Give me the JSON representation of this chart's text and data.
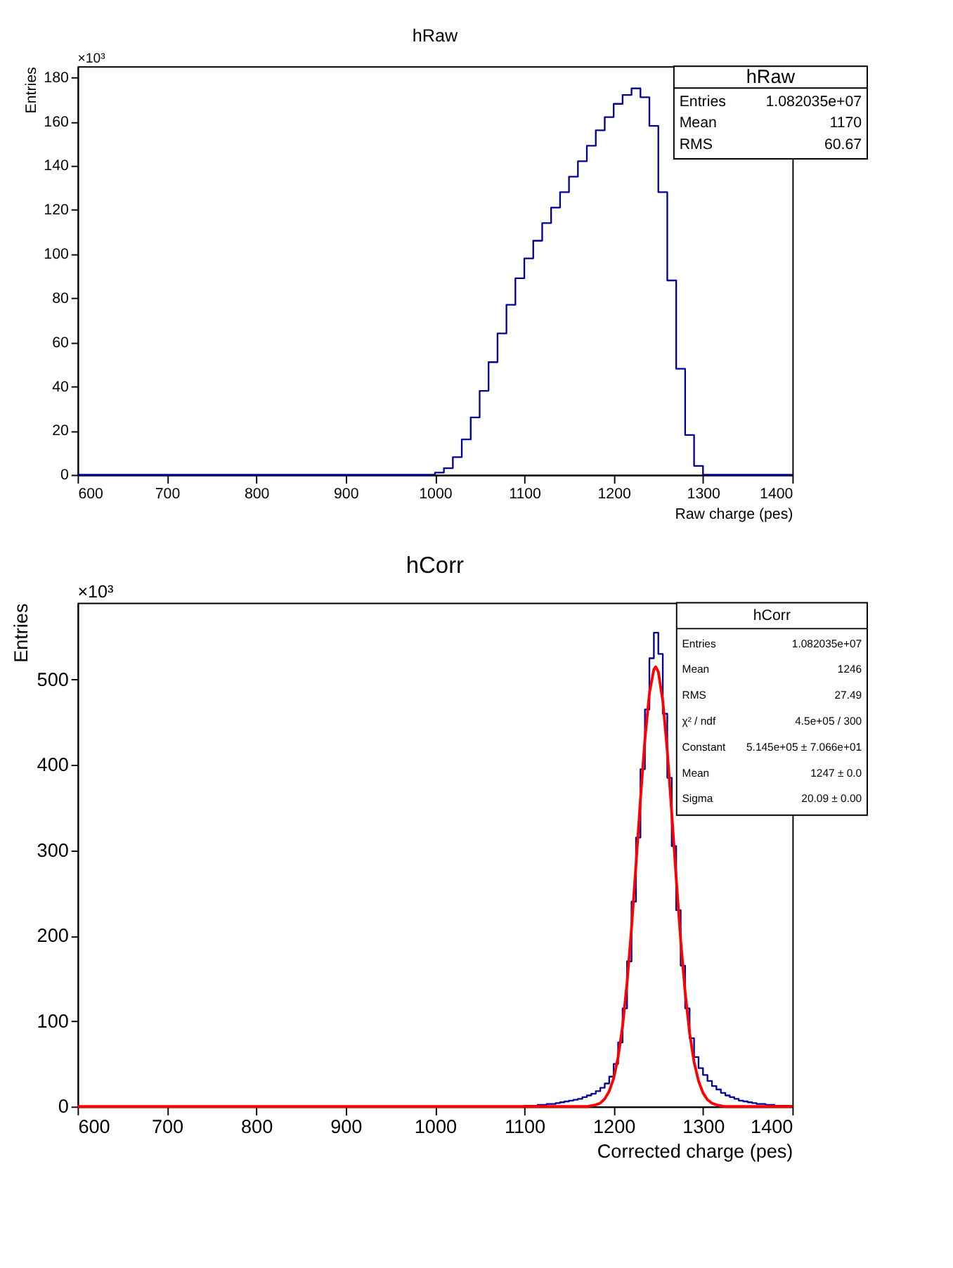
{
  "chart_data": [
    {
      "type": "histogram",
      "title": "hRaw",
      "xlabel": "Raw charge (pes)",
      "ylabel": "Entries",
      "color": "#000099",
      "bins": [
        600,
        610,
        620,
        630,
        640,
        650,
        660,
        670,
        680,
        690,
        700,
        710,
        720,
        730,
        740,
        750,
        760,
        770,
        780,
        790,
        800,
        810,
        820,
        830,
        840,
        850,
        860,
        870,
        880,
        890,
        900,
        910,
        920,
        930,
        940,
        950,
        960,
        970,
        980,
        990,
        1000,
        1010,
        1020,
        1030,
        1040,
        1050,
        1060,
        1070,
        1080,
        1090,
        1100,
        1110,
        1120,
        1130,
        1140,
        1150,
        1160,
        1170,
        1180,
        1190,
        1200,
        1210,
        1220,
        1230,
        1240,
        1250,
        1260,
        1270,
        1280,
        1290,
        1300,
        1310,
        1320,
        1330,
        1340,
        1350,
        1360,
        1370,
        1380,
        1390,
        1400
      ],
      "values": [
        0,
        0,
        0,
        0,
        0,
        0,
        0,
        0,
        0,
        0,
        0,
        0,
        0,
        0,
        0,
        0,
        0,
        0,
        0,
        0,
        0,
        0,
        0,
        0,
        0,
        0,
        0,
        0,
        0,
        0,
        0,
        0,
        0,
        0,
        0,
        0,
        0,
        0,
        0,
        0,
        1,
        3,
        8,
        16,
        26,
        38,
        51,
        64,
        77,
        89,
        98,
        106,
        114,
        121,
        128,
        135,
        142,
        149,
        156,
        162,
        168,
        172,
        175,
        171,
        158,
        128,
        88,
        48,
        18,
        4,
        0,
        0,
        0,
        0,
        0,
        0,
        0,
        0,
        0,
        0
      ],
      "xlim": [
        600,
        1400
      ],
      "ylim": [
        0,
        185
      ],
      "xticks": [
        600,
        700,
        800,
        900,
        1000,
        1100,
        1200,
        1300,
        1400
      ],
      "yticks": [
        0,
        20,
        40,
        60,
        80,
        100,
        120,
        140,
        160,
        180
      ],
      "annotations": [
        "×10³",
        "hRaw",
        "Entries",
        "1.082035e+07",
        "Mean",
        "1170",
        "RMS",
        "60.67"
      ]
    },
    {
      "type": "histogram",
      "title": "hCorr",
      "xlabel": "Corrected charge (pes)",
      "ylabel": "Entries",
      "bins": [
        600,
        610,
        620,
        630,
        640,
        650,
        660,
        670,
        680,
        690,
        700,
        710,
        720,
        730,
        740,
        750,
        760,
        770,
        780,
        790,
        800,
        810,
        820,
        830,
        840,
        850,
        860,
        870,
        880,
        890,
        900,
        910,
        920,
        930,
        940,
        950,
        960,
        970,
        980,
        990,
        1000,
        1010,
        1020,
        1030,
        1040,
        1050,
        1060,
        1070,
        1080,
        1090,
        1100,
        1105,
        1110,
        1115,
        1120,
        1125,
        1130,
        1135,
        1140,
        1145,
        1150,
        1155,
        1160,
        1165,
        1170,
        1175,
        1180,
        1185,
        1190,
        1195,
        1200,
        1205,
        1210,
        1215,
        1220,
        1225,
        1230,
        1235,
        1240,
        1245,
        1250,
        1255,
        1260,
        1265,
        1270,
        1275,
        1280,
        1285,
        1290,
        1295,
        1300,
        1305,
        1310,
        1315,
        1320,
        1325,
        1330,
        1335,
        1340,
        1345,
        1350,
        1355,
        1360,
        1365,
        1370,
        1375,
        1380,
        1385,
        1390,
        1395,
        1400
      ],
      "series": [
        {
          "type": "histogram",
          "color": "#000099",
          "values": [
            0,
            0,
            0,
            0,
            0,
            0,
            0,
            0,
            0,
            0,
            0,
            0,
            0,
            0,
            0,
            0,
            0,
            0,
            0,
            0,
            0,
            0,
            0,
            0,
            0,
            0,
            0,
            0,
            0,
            0,
            0,
            0,
            0,
            0,
            0,
            0,
            0,
            0,
            0,
            0,
            0,
            0,
            0,
            0,
            0,
            0,
            0,
            0,
            0,
            0,
            1,
            1,
            1,
            2,
            2,
            3,
            3,
            4,
            5,
            6,
            7,
            8,
            9,
            11,
            13,
            15,
            18,
            22,
            27,
            35,
            50,
            75,
            115,
            170,
            240,
            315,
            395,
            465,
            525,
            555,
            530,
            460,
            385,
            305,
            230,
            165,
            115,
            80,
            58,
            45,
            37,
            30,
            24,
            20,
            16,
            13,
            11,
            9,
            7,
            6,
            5,
            4,
            3,
            3,
            2,
            2,
            1,
            1,
            1,
            1
          ]
        },
        {
          "type": "line",
          "color": "#ff0000",
          "x": [
            600,
            1165,
            1170,
            1175,
            1180,
            1185,
            1190,
            1195,
            1200,
            1205,
            1210,
            1215,
            1220,
            1225,
            1230,
            1235,
            1240,
            1245,
            1247,
            1250,
            1255,
            1260,
            1265,
            1270,
            1275,
            1280,
            1285,
            1290,
            1295,
            1300,
            1305,
            1310,
            1315,
            1320,
            1325,
            1330,
            1400
          ],
          "values": [
            0,
            0,
            0,
            1,
            2,
            4,
            9,
            18,
            33,
            58,
            94,
            145,
            209,
            283,
            360,
            430,
            484,
            512,
            515,
            509,
            475,
            417,
            344,
            267,
            195,
            134,
            86,
            52,
            30,
            16,
            8,
            4,
            2,
            1,
            0,
            0,
            0
          ]
        }
      ],
      "xlim": [
        600,
        1400
      ],
      "ylim": [
        0,
        590
      ],
      "xticks": [
        600,
        700,
        800,
        900,
        1000,
        1100,
        1200,
        1300,
        1400
      ],
      "yticks": [
        0,
        100,
        200,
        300,
        400,
        500
      ],
      "annotations": [
        "×10³",
        "hCorr",
        "Entries",
        "1.082035e+07",
        "Mean",
        "1246",
        "RMS",
        "27.49",
        "χ² / ndf",
        "4.5e+05 / 300",
        "Constant",
        "5.145e+05 ± 7.066e+01",
        "Mean",
        "1247 ± 0.0",
        "Sigma",
        "20.09 ± 0.00"
      ]
    }
  ]
}
